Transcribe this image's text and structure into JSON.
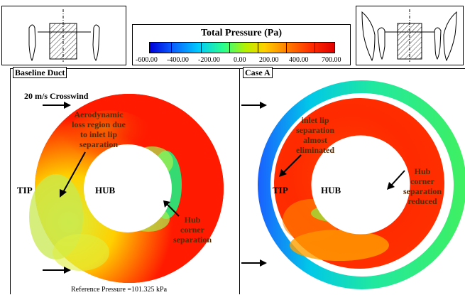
{
  "colorbar": {
    "title": "Total  Pressure (Pa)",
    "ticks": [
      "-600.00",
      "-400.00",
      "-200.00",
      "0.00",
      "200.00",
      "400.00",
      "700.00"
    ],
    "colors": [
      "#0000d8",
      "#0a5cff",
      "#00c8ff",
      "#2bff8c",
      "#b7f000",
      "#ffd000",
      "#ff7a00",
      "#ff2a00",
      "#e00000"
    ]
  },
  "left_panel": {
    "title": "Baseline Duct",
    "crosswind": "20 m/s Crosswind",
    "annotation_lip": [
      "Aerodynamic",
      "loss region due",
      "to inlet lip",
      "separation"
    ],
    "tip": "TIP",
    "hub": "HUB",
    "annotation_hub": [
      "Hub",
      "corner",
      "separation"
    ],
    "reference": "Reference Pressure =101.325 kPa"
  },
  "right_panel": {
    "title": "Case A",
    "annotation_lip": [
      "inlet lip",
      "separation",
      "almost",
      "eliminated"
    ],
    "tip": "TIP",
    "hub": "HUB",
    "annotation_hub": [
      "Hub",
      "corner",
      "separation",
      "reduced"
    ]
  }
}
